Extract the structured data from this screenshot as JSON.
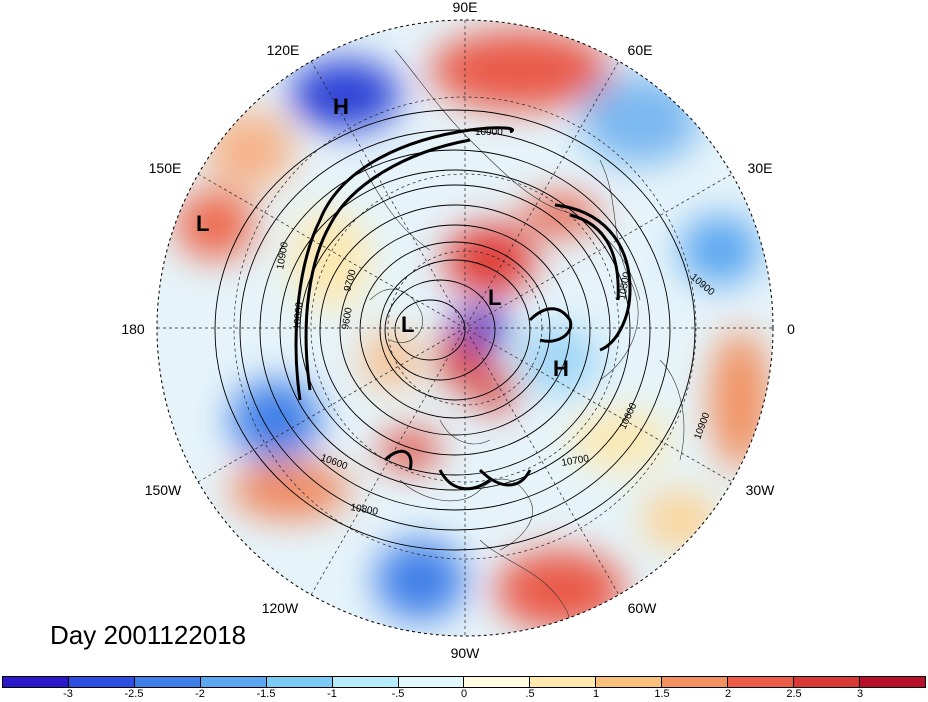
{
  "title": "Day 2001122018",
  "longitude_labels": {
    "top": "90E",
    "upper_left": "120E",
    "upper_right": "60E",
    "left_upper": "150E",
    "right_upper": "30E",
    "left": "180",
    "right": "0",
    "left_lower": "150W",
    "right_lower": "30W",
    "lower_left": "120W",
    "lower_right": "60W",
    "bottom": "90W"
  },
  "pressure_centers": {
    "h1": "H",
    "h2": "H",
    "l1": "L",
    "l2": "L",
    "l3": "L"
  },
  "contour_labels": {
    "c1": "10900",
    "c2": "10900",
    "c3": "10900",
    "c4": "10600",
    "c5": "10600",
    "c6": "10700",
    "c7": "10800",
    "c8": "9600",
    "c9": "9700",
    "c10": "10900",
    "c11": "10800",
    "c12": "10500"
  },
  "colorbar": {
    "colors": [
      "#2a18c9",
      "#2c4fe0",
      "#3f7fe8",
      "#5aa6f0",
      "#7ccbf5",
      "#b4ecfa",
      "#e2f7fb",
      "#fffbe0",
      "#fde8b0",
      "#f9c07d",
      "#f29060",
      "#eb5d47",
      "#d73a35",
      "#b8102a"
    ],
    "ticks": [
      "-3",
      "-2.5",
      "-2",
      "-1.5",
      "-1",
      "-.5",
      "0",
      ".5",
      "1",
      "1.5",
      "2",
      "2.5",
      "3"
    ]
  }
}
